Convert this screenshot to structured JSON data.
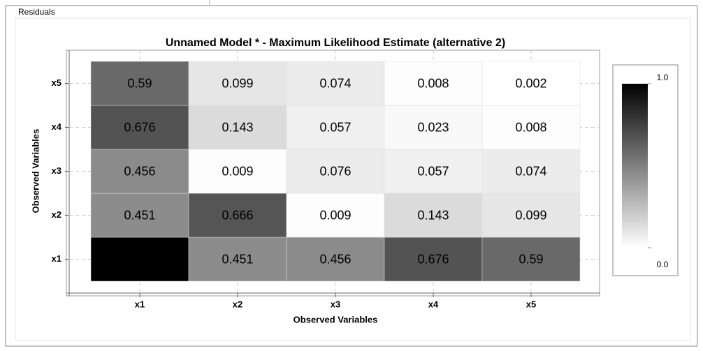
{
  "window": {
    "title": "Residuals"
  },
  "chart_data": {
    "type": "heatmap",
    "title": "Unnamed Model * - Maximum Likelihood Estimate (alternative 2)",
    "x_label": "Observed Variables",
    "y_label": "Observed Variables",
    "x_categories": [
      "x1",
      "x2",
      "x3",
      "x4",
      "x5"
    ],
    "y_categories": [
      "x1",
      "x2",
      "x3",
      "x4",
      "x5"
    ],
    "values": [
      [
        1.0,
        0.451,
        0.456,
        0.676,
        0.59
      ],
      [
        0.451,
        0.666,
        0.009,
        0.143,
        0.099
      ],
      [
        0.456,
        0.009,
        0.076,
        0.057,
        0.074
      ],
      [
        0.676,
        0.143,
        0.057,
        0.023,
        0.008
      ],
      [
        0.59,
        0.099,
        0.074,
        0.008,
        0.002
      ]
    ],
    "value_labels": [
      [
        null,
        "0.451",
        "0.456",
        "0.676",
        "0.59"
      ],
      [
        "0.451",
        "0.666",
        "0.009",
        "0.143",
        "0.099"
      ],
      [
        "0.456",
        "0.009",
        "0.076",
        "0.057",
        "0.074"
      ],
      [
        "0.676",
        "0.143",
        "0.057",
        "0.023",
        "0.008"
      ],
      [
        "0.59",
        "0.099",
        "0.074",
        "0.008",
        "0.002"
      ]
    ],
    "zlim": [
      0,
      1
    ],
    "zticks": [
      {
        "value": 1,
        "label": "1.0"
      },
      {
        "value": 0,
        "label": "0.0"
      }
    ],
    "colormap": [
      "#ffffff",
      "#000000"
    ],
    "grid": true
  }
}
